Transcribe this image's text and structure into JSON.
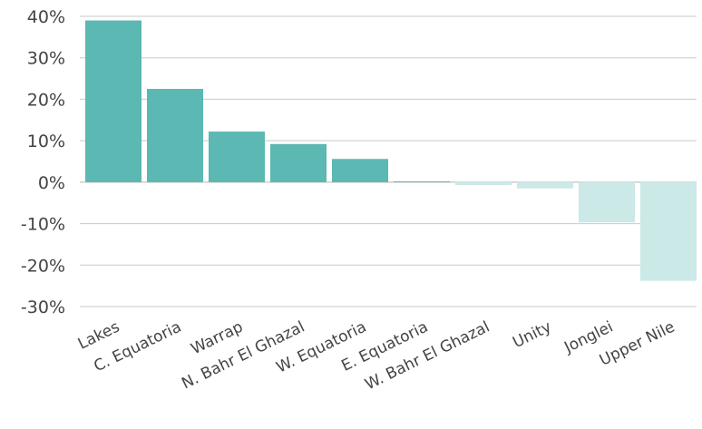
{
  "chart_data": {
    "type": "bar",
    "title": "",
    "xlabel": "",
    "ylabel": "",
    "categories": [
      "Lakes",
      "C. Equatoria",
      "Warrap",
      "N. Bahr El Ghazal",
      "W. Equatoria",
      "E. Equatoria",
      "W. Bahr El Ghazal",
      "Unity",
      "Jonglei",
      "Upper Nile"
    ],
    "values": [
      39,
      22.5,
      12.2,
      9.2,
      5.6,
      0.2,
      -0.7,
      -1.5,
      -9.7,
      -23.8
    ],
    "ylim": [
      -30,
      40
    ],
    "yticks": [
      40,
      30,
      20,
      10,
      0,
      -10,
      -20,
      -30
    ],
    "ytick_labels": [
      "40%",
      "30%",
      "20%",
      "10%",
      "0%",
      "-10%",
      "-20%",
      "-30%"
    ],
    "grid": true,
    "legend": "none",
    "colors": {
      "positive": "#5bb8b2",
      "negative": "#cbe9e6"
    }
  }
}
